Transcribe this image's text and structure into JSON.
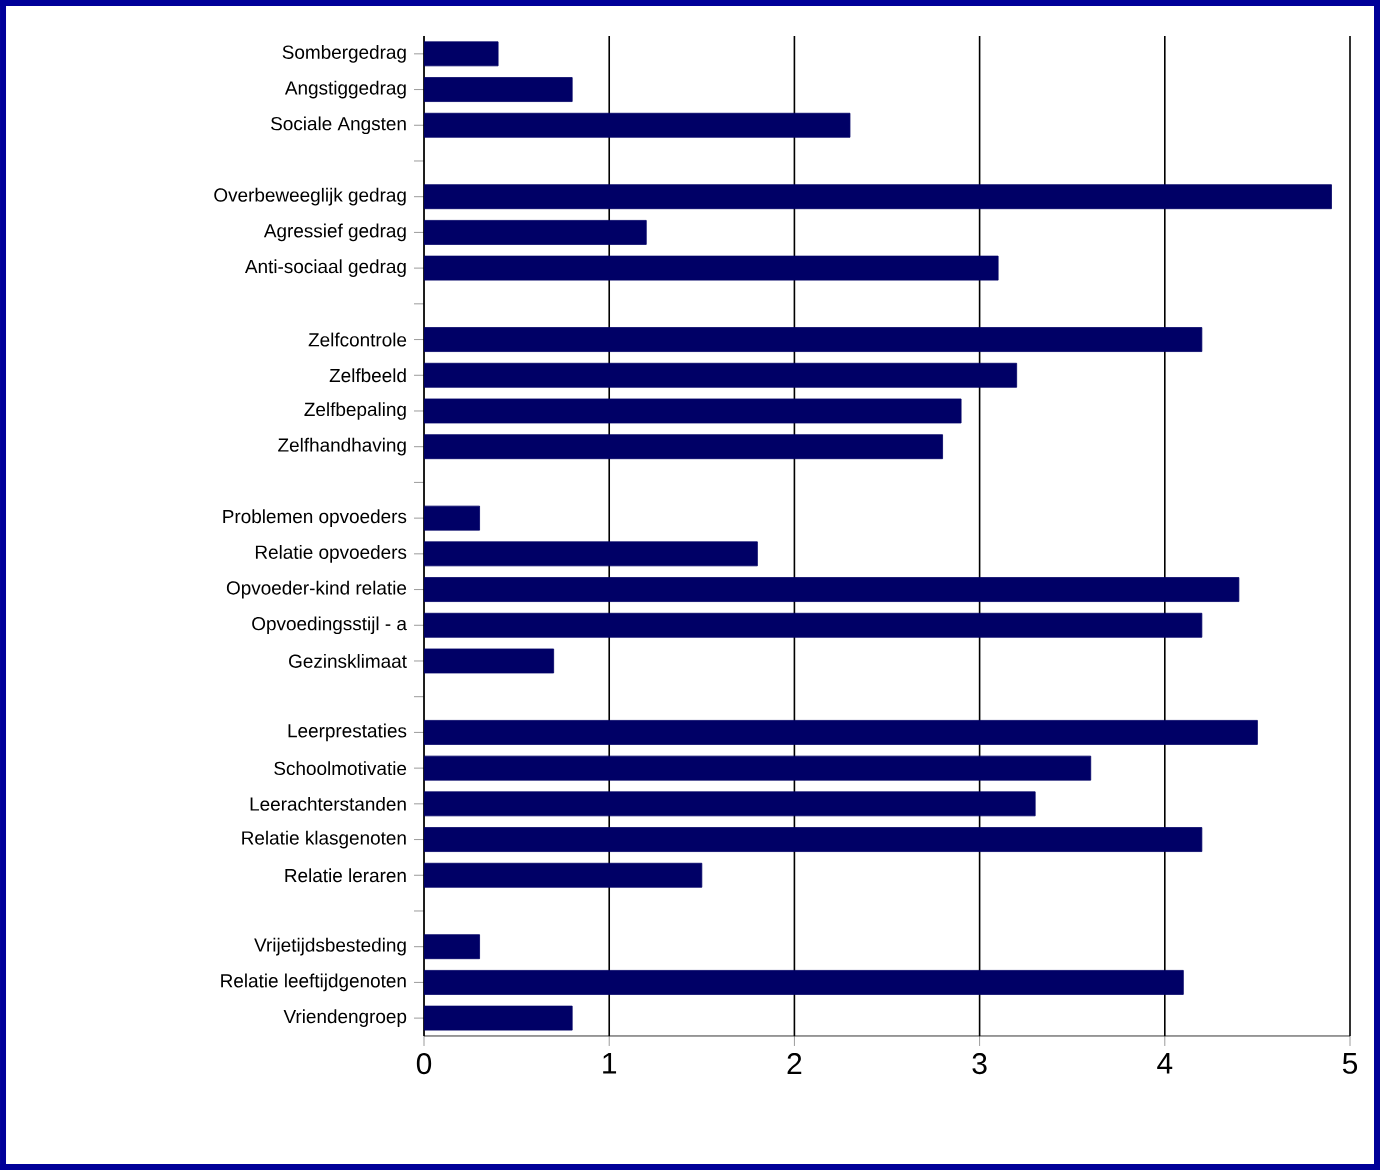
{
  "chart_data": {
    "type": "bar",
    "orientation": "horizontal",
    "color": "#000066",
    "grid": "x",
    "categories": [
      "Sombergedrag",
      "Angstiggedrag",
      "Sociale Angsten",
      null,
      "Overbeweeglijk gedrag",
      "Agressief gedrag",
      "Anti-sociaal gedrag",
      null,
      "Zelfcontrole",
      "Zelfbeeld",
      "Zelfbepaling",
      "Zelfhandhaving",
      null,
      "Problemen opvoeders",
      "Relatie opvoeders",
      "Opvoeder-kind relatie",
      "Opvoedingsstijl - a",
      "Gezinsklimaat",
      null,
      "Leerprestaties",
      "Schoolmotivatie",
      "Leerachterstanden",
      "Relatie klasgenoten",
      "Relatie leraren",
      null,
      "Vrijetijdsbesteding",
      "Relatie leeftijdgenoten",
      "Vriendengroep"
    ],
    "values": [
      0.4,
      0.8,
      2.3,
      null,
      4.9,
      1.2,
      3.1,
      null,
      4.2,
      3.2,
      2.9,
      2.8,
      null,
      0.3,
      1.8,
      4.4,
      4.2,
      0.7,
      null,
      4.5,
      3.6,
      3.3,
      4.2,
      1.5,
      null,
      0.3,
      4.1,
      0.8
    ],
    "xlim": [
      0,
      5
    ],
    "xticks": [
      0,
      1,
      2,
      3,
      4,
      5
    ]
  }
}
